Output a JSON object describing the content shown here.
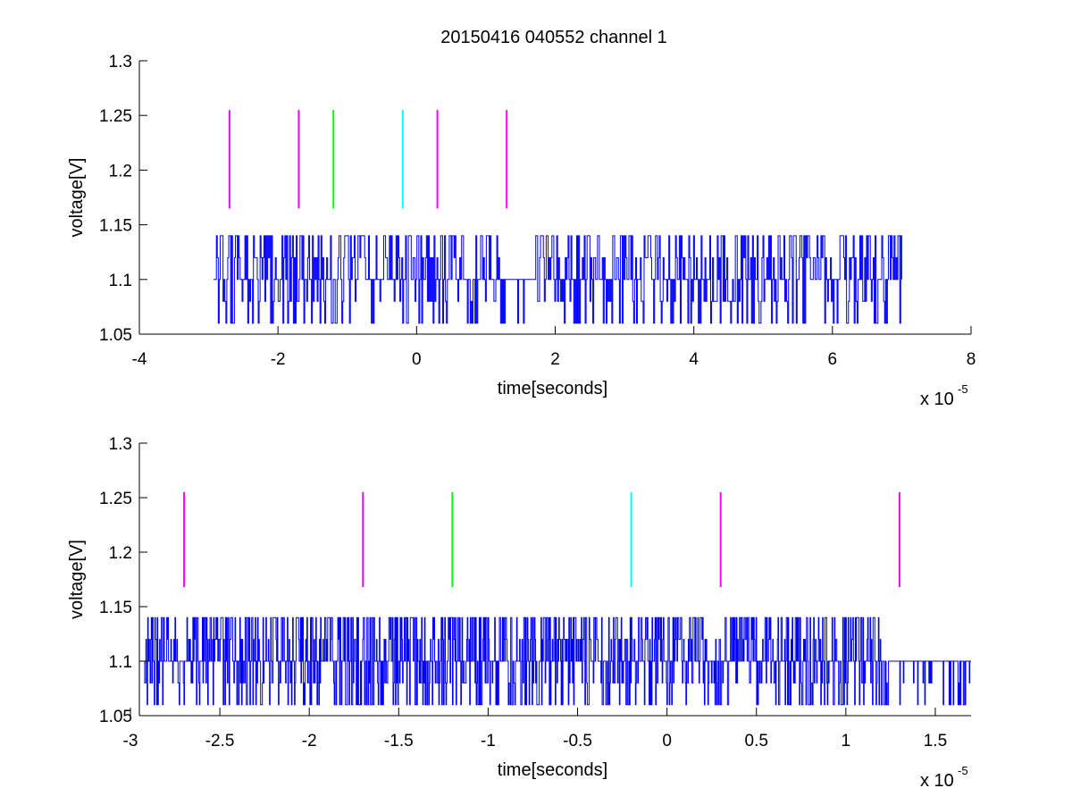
{
  "figure": {
    "title": "20150416 040552 channel 1",
    "background": "#ffffff",
    "signal_color": "#0000ff",
    "marker_colors": {
      "magenta": "#ff00ff",
      "green": "#00ff00",
      "cyan": "#00ffff"
    }
  },
  "chart_data": [
    {
      "type": "line",
      "title": "20150416 040552 channel 1",
      "xlabel": "time[seconds]",
      "ylabel": "voltage[V]",
      "x_multiplier": {
        "base": "x 10",
        "exponent": "-5"
      },
      "xlim": [
        -4,
        8
      ],
      "ylim": [
        1.05,
        1.3
      ],
      "xticks": [
        -4,
        -2,
        0,
        2,
        4,
        6,
        8
      ],
      "xtick_labels": [
        "-4",
        "-2",
        "0",
        "2",
        "4",
        "6",
        "8"
      ],
      "yticks": [
        1.05,
        1.1,
        1.15,
        1.2,
        1.25,
        1.3
      ],
      "ytick_labels": [
        "1.05",
        "1.1",
        "1.15",
        "1.2",
        "1.25",
        "1.3"
      ],
      "grid": false,
      "legend": "none",
      "series": [
        {
          "kind": "signal",
          "color": "#0000ff",
          "x_range": [
            -2.93,
            7.0
          ],
          "baseline": 1.1,
          "high": 1.14,
          "low": 1.06,
          "intermediate": [
            1.12,
            1.08
          ],
          "quiet_span": [
            1.2,
            1.7
          ]
        }
      ],
      "markers": [
        {
          "x": -2.7,
          "y": [
            1.165,
            1.255
          ],
          "color": "#ff00ff"
        },
        {
          "x": -1.7,
          "y": [
            1.165,
            1.255
          ],
          "color": "#ff00ff"
        },
        {
          "x": -1.2,
          "y": [
            1.165,
            1.255
          ],
          "color": "#00ff00"
        },
        {
          "x": -0.2,
          "y": [
            1.165,
            1.255
          ],
          "color": "#00ffff"
        },
        {
          "x": 0.3,
          "y": [
            1.165,
            1.255
          ],
          "color": "#ff00ff"
        },
        {
          "x": 1.3,
          "y": [
            1.165,
            1.255
          ],
          "color": "#ff00ff"
        }
      ]
    },
    {
      "type": "line",
      "title": "",
      "xlabel": "time[seconds]",
      "ylabel": "voltage[V]",
      "x_multiplier": {
        "base": "x 10",
        "exponent": "-5"
      },
      "xlim": [
        -2.95,
        1.7
      ],
      "ylim": [
        1.05,
        1.3
      ],
      "xticks": [
        -3,
        -2.5,
        -2,
        -1.5,
        -1,
        -0.5,
        0,
        0.5,
        1,
        1.5
      ],
      "xtick_labels": [
        "-3",
        "-2.5",
        "-2",
        "-1.5",
        "-1",
        "-0.5",
        "0",
        "0.5",
        "1",
        "1.5"
      ],
      "yticks": [
        1.05,
        1.1,
        1.15,
        1.2,
        1.25,
        1.3
      ],
      "ytick_labels": [
        "1.05",
        "1.1",
        "1.15",
        "1.2",
        "1.25",
        "1.3"
      ],
      "grid": false,
      "legend": "none",
      "series": [
        {
          "kind": "signal",
          "color": "#0000ff",
          "x_range": [
            -2.93,
            1.7
          ],
          "baseline": 1.1,
          "high": 1.14,
          "low": 1.06,
          "intermediate": [
            1.12,
            1.08
          ],
          "quiet_span": [
            1.2,
            1.7
          ]
        }
      ],
      "markers": [
        {
          "x": -2.7,
          "y": [
            1.168,
            1.255
          ],
          "color": "#ff00ff"
        },
        {
          "x": -1.7,
          "y": [
            1.168,
            1.255
          ],
          "color": "#ff00ff"
        },
        {
          "x": -1.2,
          "y": [
            1.168,
            1.255
          ],
          "color": "#00ff00"
        },
        {
          "x": -0.2,
          "y": [
            1.168,
            1.255
          ],
          "color": "#00ffff"
        },
        {
          "x": 0.3,
          "y": [
            1.168,
            1.255
          ],
          "color": "#ff00ff"
        },
        {
          "x": 1.3,
          "y": [
            1.168,
            1.255
          ],
          "color": "#ff00ff"
        }
      ]
    }
  ]
}
